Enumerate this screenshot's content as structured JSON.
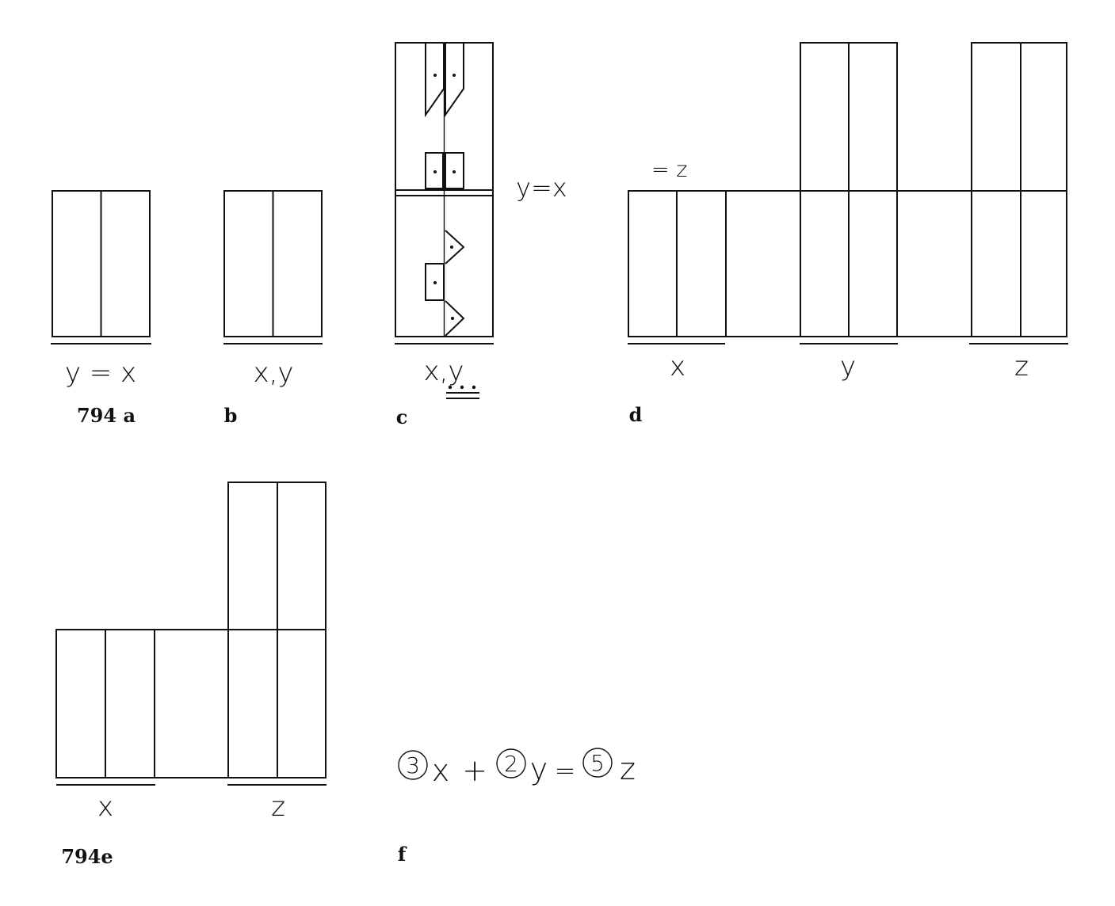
{
  "panels": {
    "a": {
      "caption": "794 a",
      "label": "y = x"
    },
    "b": {
      "caption": "b",
      "label": "x,y"
    },
    "c": {
      "caption": "c",
      "label": "x,y",
      "side_label": "y=x"
    },
    "d": {
      "caption": "d",
      "top_label": "= z",
      "labels": [
        "x",
        "y",
        "z"
      ]
    },
    "e": {
      "caption": "794e",
      "labels": [
        "x",
        "z"
      ]
    },
    "f": {
      "caption": "f",
      "equation": {
        "coef_x": "3",
        "var_x": "x",
        "plus": "+",
        "coef_y": "2",
        "var_y": "y",
        "equals": "=",
        "coef_z": "5",
        "var_z": "z"
      }
    }
  }
}
